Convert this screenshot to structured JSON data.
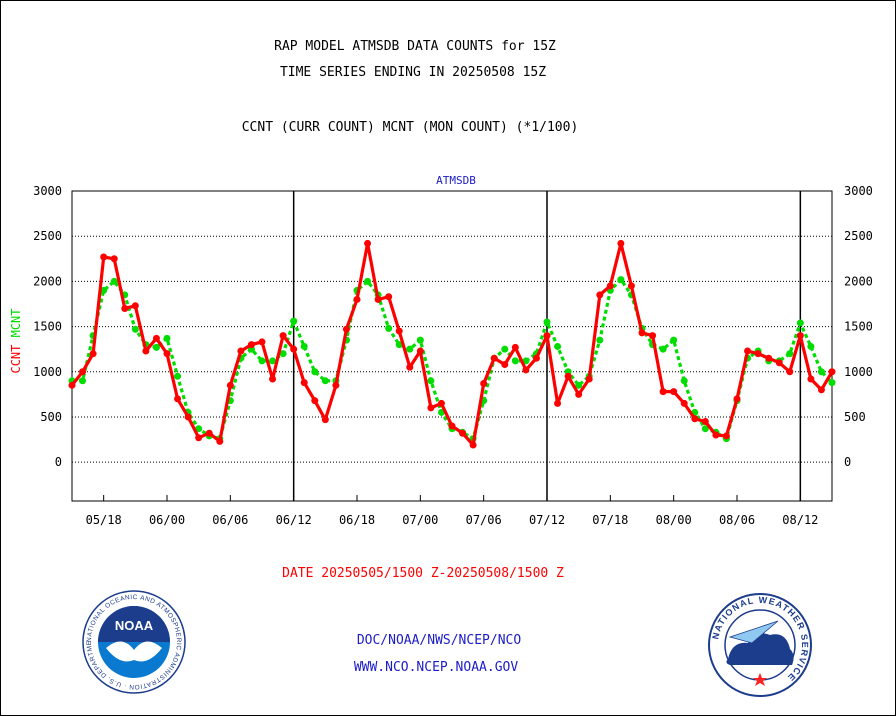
{
  "header": {
    "title_line1": "RAP MODEL ATMSDB DATA COUNTS for 15Z",
    "title_line2": "TIME SERIES ENDING IN 20250508 15Z",
    "subtitle": "CCNT (CURR COUNT) MCNT (MON COUNT) (*1/100)"
  },
  "footer": {
    "date_range": "DATE 20250505/1500 Z-20250508/1500 Z",
    "credit_line1": "DOC/NOAA/NWS/NCEP/NCO",
    "credit_line2": "WWW.NCO.NCEP.NOAA.GOV"
  },
  "logos": {
    "left": {
      "name": "noaa-logo",
      "text": "NOAA"
    },
    "right": {
      "name": "nws-logo",
      "text": "NATIONAL WEATHER SERVICE"
    }
  },
  "chart_data": {
    "type": "line",
    "title": "ATMSDB",
    "ylabel_series1": "CCNT",
    "ylabel_series2": "MCNT",
    "ylim": [
      -430,
      3000
    ],
    "yticks": [
      0,
      500,
      1000,
      1500,
      2000,
      2500,
      3000
    ],
    "ytick_labels": [
      "0",
      "500",
      "1000",
      "1500",
      "2000",
      "2500",
      "3000"
    ],
    "xlim": [
      0,
      60
    ],
    "xticks": [
      {
        "x": 2.5,
        "label": "05/18"
      },
      {
        "x": 7.5,
        "label": "06/00"
      },
      {
        "x": 12.5,
        "label": "06/06"
      },
      {
        "x": 17.5,
        "label": "06/12"
      },
      {
        "x": 22.5,
        "label": "06/18"
      },
      {
        "x": 27.5,
        "label": "07/00"
      },
      {
        "x": 32.5,
        "label": "07/06"
      },
      {
        "x": 37.5,
        "label": "07/12"
      },
      {
        "x": 42.5,
        "label": "07/18"
      },
      {
        "x": 47.5,
        "label": "08/00"
      },
      {
        "x": 52.5,
        "label": "08/06"
      },
      {
        "x": 57.5,
        "label": "08/12"
      }
    ],
    "day_boundaries": [
      17.5,
      37.5,
      57.5
    ],
    "grid": true,
    "series": [
      {
        "name": "CCNT",
        "color": "#ff0000",
        "style": "solid",
        "values": [
          850,
          1000,
          1200,
          2270,
          2250,
          1700,
          1730,
          1230,
          1370,
          1200,
          700,
          500,
          270,
          320,
          230,
          850,
          1230,
          1300,
          1330,
          920,
          1400,
          1250,
          880,
          680,
          470,
          850,
          1470,
          1800,
          2420,
          1800,
          1830,
          1450,
          1050,
          1230,
          600,
          650,
          400,
          320,
          190,
          870,
          1150,
          1080,
          1270,
          1020,
          1150,
          1400,
          650,
          950,
          750,
          920,
          1850,
          1950,
          2420,
          1950,
          1430,
          1400,
          780,
          780,
          650,
          480,
          450,
          300,
          290,
          700,
          1230,
          1200,
          1150,
          1100,
          1000,
          1400,
          920,
          800,
          1000
        ]
      },
      {
        "name": "MCNT",
        "color": "#00dd00",
        "style": "dotted",
        "values": [
          900,
          900,
          1400,
          1900,
          2000,
          1850,
          1470,
          1300,
          1270,
          1370,
          950,
          550,
          370,
          290,
          260,
          680,
          1150,
          1250,
          1120,
          1120,
          1200,
          1560,
          1280,
          1000,
          900,
          900,
          1350,
          1900,
          2000,
          1850,
          1480,
          1300,
          1250,
          1350,
          900,
          550,
          370,
          330,
          260,
          680,
          1150,
          1250,
          1120,
          1120,
          1200,
          1550,
          1280,
          1000,
          850,
          950,
          1350,
          1900,
          2020,
          1850,
          1480,
          1300,
          1250,
          1350,
          900,
          550,
          370,
          330,
          260,
          680,
          1150,
          1230,
          1120,
          1120,
          1200,
          1540,
          1280,
          1000,
          880
        ]
      }
    ]
  }
}
